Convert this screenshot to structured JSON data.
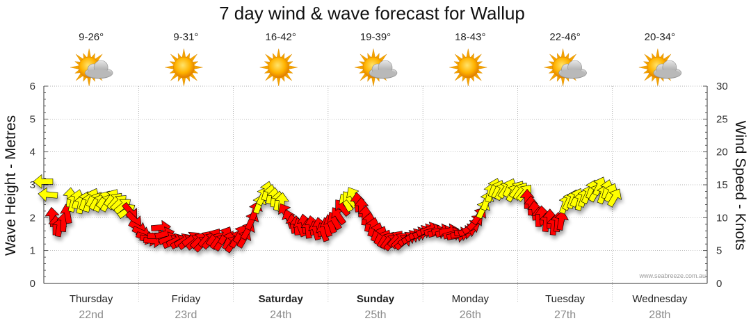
{
  "chart_data": {
    "type": "scatter",
    "title": "7 day wind & wave forecast for Wallup",
    "ylabel_left": "Wave Height - Metres",
    "ylabel_right": "Wind Speed - Knots",
    "ylim_left": [
      0,
      6
    ],
    "ylim_right": [
      0,
      30
    ],
    "yticks_left": [
      "0",
      "1",
      "2",
      "3",
      "4",
      "5",
      "6"
    ],
    "yticks_right": [
      "0",
      "5",
      "10",
      "15",
      "20",
      "25",
      "30"
    ],
    "credit": "www.seabreeze.com.au",
    "days": [
      {
        "name": "Thursday",
        "date": "22nd",
        "temp": "9-26°",
        "weather": "partly-cloudy-icon",
        "weekend": false
      },
      {
        "name": "Friday",
        "date": "23rd",
        "temp": "9-31°",
        "weather": "sunny-icon",
        "weekend": false
      },
      {
        "name": "Saturday",
        "date": "24th",
        "temp": "16-42°",
        "weather": "sunny-icon",
        "weekend": true
      },
      {
        "name": "Sunday",
        "date": "25th",
        "temp": "19-39°",
        "weather": "partly-cloudy-icon",
        "weekend": true
      },
      {
        "name": "Monday",
        "date": "26th",
        "temp": "18-43°",
        "weather": "sunny-icon",
        "weekend": false
      },
      {
        "name": "Tuesday",
        "date": "27th",
        "temp": "22-46°",
        "weather": "partly-cloudy-icon",
        "weekend": false
      },
      {
        "name": "Wednesday",
        "date": "28th",
        "temp": "20-34°",
        "weather": "partly-cloudy-icon",
        "weekend": false
      }
    ],
    "colors": {
      "strong": "#ff0000",
      "light": "#ffff00",
      "outline": "#000000",
      "grid": "#999999"
    },
    "series": [
      {
        "name": "Wind direction & speed (arrows)",
        "values": [
          [
            0.0,
            3.1,
            90,
            "y"
          ],
          [
            0.1,
            2.7,
            95,
            "y"
          ],
          [
            0.18,
            2.0,
            175,
            "r"
          ],
          [
            0.25,
            1.75,
            180,
            "r"
          ],
          [
            0.33,
            1.7,
            190,
            "r"
          ],
          [
            0.42,
            1.85,
            185,
            "r"
          ],
          [
            0.5,
            2.1,
            170,
            "r"
          ],
          [
            0.55,
            2.6,
            185,
            "y"
          ],
          [
            0.62,
            2.45,
            195,
            "y"
          ],
          [
            0.7,
            2.55,
            195,
            "y"
          ],
          [
            0.78,
            2.4,
            190,
            "y"
          ],
          [
            0.86,
            2.5,
            200,
            "y"
          ],
          [
            0.94,
            2.45,
            195,
            "y"
          ],
          [
            1.02,
            2.6,
            205,
            "y"
          ],
          [
            1.1,
            2.5,
            210,
            "y"
          ],
          [
            1.18,
            2.45,
            205,
            "y"
          ],
          [
            1.26,
            2.55,
            215,
            "y"
          ],
          [
            1.34,
            2.45,
            210,
            "y"
          ],
          [
            1.42,
            2.6,
            215,
            "y"
          ],
          [
            1.5,
            2.5,
            220,
            "y"
          ],
          [
            1.58,
            2.45,
            225,
            "y"
          ],
          [
            1.66,
            2.35,
            230,
            "y"
          ],
          [
            1.74,
            2.2,
            235,
            "y"
          ],
          [
            1.82,
            2.2,
            320,
            "r"
          ],
          [
            1.9,
            1.95,
            315,
            "r"
          ],
          [
            1.98,
            1.7,
            300,
            "r"
          ],
          [
            2.06,
            1.55,
            295,
            "r"
          ],
          [
            2.14,
            1.4,
            290,
            "r"
          ],
          [
            2.22,
            1.35,
            280,
            "r"
          ],
          [
            2.3,
            1.3,
            275,
            "r"
          ],
          [
            2.38,
            1.45,
            270,
            "r"
          ],
          [
            2.46,
            1.7,
            265,
            "r"
          ],
          [
            2.54,
            1.5,
            255,
            "r"
          ],
          [
            2.62,
            1.35,
            250,
            "r"
          ],
          [
            2.7,
            1.25,
            245,
            "r"
          ],
          [
            2.78,
            1.3,
            245,
            "r"
          ],
          [
            2.86,
            1.25,
            240,
            "r"
          ],
          [
            2.94,
            1.3,
            240,
            "r"
          ],
          [
            3.02,
            1.25,
            235,
            "r"
          ],
          [
            3.1,
            1.35,
            235,
            "r"
          ],
          [
            3.18,
            1.25,
            230,
            "r"
          ],
          [
            3.26,
            1.3,
            225,
            "r"
          ],
          [
            3.34,
            1.2,
            225,
            "r"
          ],
          [
            3.42,
            1.35,
            220,
            "r"
          ],
          [
            3.5,
            1.3,
            220,
            "r"
          ],
          [
            3.58,
            1.4,
            215,
            "r"
          ],
          [
            3.66,
            1.3,
            215,
            "r"
          ],
          [
            3.74,
            1.25,
            215,
            "r"
          ],
          [
            3.82,
            1.45,
            210,
            "r"
          ],
          [
            3.9,
            1.3,
            205,
            "r"
          ],
          [
            3.98,
            1.2,
            215,
            "r"
          ],
          [
            4.06,
            1.35,
            210,
            "r"
          ],
          [
            4.14,
            1.5,
            210,
            "r"
          ],
          [
            4.22,
            1.35,
            210,
            "r"
          ],
          [
            4.3,
            1.6,
            210,
            "r"
          ],
          [
            4.38,
            1.9,
            205,
            "r"
          ],
          [
            4.46,
            2.2,
            200,
            "r"
          ],
          [
            4.54,
            2.4,
            200,
            "y"
          ],
          [
            4.62,
            2.65,
            205,
            "y"
          ],
          [
            4.7,
            2.8,
            195,
            "y"
          ],
          [
            4.78,
            2.7,
            190,
            "y"
          ],
          [
            4.86,
            2.6,
            185,
            "y"
          ],
          [
            4.94,
            2.5,
            190,
            "y"
          ],
          [
            5.02,
            2.45,
            185,
            "y"
          ],
          [
            5.1,
            2.15,
            150,
            "r"
          ],
          [
            5.18,
            1.95,
            160,
            "r"
          ],
          [
            5.26,
            1.8,
            170,
            "r"
          ],
          [
            5.34,
            1.75,
            175,
            "r"
          ],
          [
            5.42,
            1.7,
            160,
            "r"
          ],
          [
            5.5,
            1.8,
            170,
            "r"
          ],
          [
            5.58,
            1.65,
            175,
            "r"
          ],
          [
            5.66,
            1.75,
            170,
            "r"
          ],
          [
            5.74,
            1.6,
            165,
            "r"
          ],
          [
            5.82,
            1.7,
            170,
            "r"
          ],
          [
            5.9,
            1.55,
            160,
            "r"
          ],
          [
            5.98,
            1.7,
            165,
            "r"
          ],
          [
            6.06,
            1.8,
            160,
            "r"
          ],
          [
            6.14,
            1.9,
            150,
            "r"
          ],
          [
            6.22,
            2.05,
            145,
            "r"
          ],
          [
            6.3,
            2.3,
            140,
            "r"
          ],
          [
            6.38,
            2.45,
            150,
            "y"
          ],
          [
            6.46,
            2.55,
            140,
            "y"
          ],
          [
            6.54,
            2.65,
            150,
            "y"
          ],
          [
            6.62,
            2.45,
            175,
            "r"
          ],
          [
            6.7,
            2.3,
            180,
            "r"
          ],
          [
            6.78,
            2.05,
            185,
            "r"
          ],
          [
            6.86,
            1.85,
            190,
            "r"
          ],
          [
            6.94,
            1.7,
            195,
            "r"
          ],
          [
            7.02,
            1.55,
            200,
            "r"
          ],
          [
            7.1,
            1.45,
            205,
            "r"
          ],
          [
            7.18,
            1.35,
            210,
            "r"
          ],
          [
            7.26,
            1.3,
            215,
            "r"
          ],
          [
            7.34,
            1.25,
            220,
            "r"
          ],
          [
            7.42,
            1.35,
            220,
            "r"
          ],
          [
            7.5,
            1.3,
            225,
            "r"
          ],
          [
            7.58,
            1.25,
            230,
            "r"
          ],
          [
            7.66,
            1.35,
            235,
            "r"
          ],
          [
            7.74,
            1.4,
            240,
            "r"
          ],
          [
            7.82,
            1.45,
            245,
            "r"
          ],
          [
            7.9,
            1.5,
            250,
            "r"
          ],
          [
            7.98,
            1.55,
            245,
            "r"
          ],
          [
            8.06,
            1.6,
            250,
            "r"
          ],
          [
            8.14,
            1.65,
            250,
            "r"
          ],
          [
            8.22,
            1.6,
            255,
            "r"
          ],
          [
            8.3,
            1.55,
            255,
            "r"
          ],
          [
            8.38,
            1.6,
            260,
            "r"
          ],
          [
            8.46,
            1.55,
            255,
            "r"
          ],
          [
            8.54,
            1.6,
            260,
            "r"
          ],
          [
            8.62,
            1.5,
            255,
            "r"
          ],
          [
            8.7,
            1.45,
            260,
            "r"
          ],
          [
            8.78,
            1.5,
            260,
            "r"
          ],
          [
            8.86,
            1.55,
            265,
            "r"
          ],
          [
            8.94,
            1.6,
            250,
            "r"
          ],
          [
            9.02,
            1.7,
            240,
            "r"
          ],
          [
            9.1,
            1.85,
            225,
            "r"
          ],
          [
            9.18,
            2.05,
            215,
            "r"
          ],
          [
            9.26,
            2.25,
            205,
            "y"
          ],
          [
            9.34,
            2.5,
            200,
            "y"
          ],
          [
            9.42,
            2.75,
            195,
            "y"
          ],
          [
            9.5,
            2.9,
            200,
            "y"
          ],
          [
            9.58,
            2.85,
            205,
            "y"
          ],
          [
            9.66,
            2.8,
            210,
            "y"
          ],
          [
            9.74,
            2.85,
            215,
            "y"
          ],
          [
            9.82,
            2.9,
            205,
            "y"
          ],
          [
            9.9,
            2.75,
            210,
            "y"
          ],
          [
            9.98,
            2.85,
            215,
            "y"
          ],
          [
            10.06,
            2.8,
            215,
            "y"
          ],
          [
            10.14,
            2.75,
            220,
            "y"
          ],
          [
            10.2,
            2.55,
            180,
            "r"
          ],
          [
            10.28,
            2.35,
            180,
            "r"
          ],
          [
            10.36,
            2.2,
            175,
            "r"
          ],
          [
            10.44,
            2.0,
            180,
            "r"
          ],
          [
            10.52,
            2.05,
            175,
            "r"
          ],
          [
            10.6,
            1.85,
            185,
            "r"
          ],
          [
            10.68,
            1.95,
            180,
            "r"
          ],
          [
            10.76,
            1.75,
            185,
            "r"
          ],
          [
            10.84,
            1.85,
            185,
            "r"
          ],
          [
            10.92,
            1.9,
            190,
            "r"
          ],
          [
            11.0,
            2.4,
            200,
            "y"
          ],
          [
            11.08,
            2.5,
            205,
            "y"
          ],
          [
            11.16,
            2.55,
            200,
            "y"
          ],
          [
            11.24,
            2.6,
            205,
            "y"
          ],
          [
            11.32,
            2.5,
            195,
            "y"
          ],
          [
            11.4,
            2.6,
            200,
            "y"
          ],
          [
            11.48,
            2.7,
            205,
            "y"
          ],
          [
            11.56,
            2.85,
            200,
            "y"
          ],
          [
            11.64,
            2.75,
            210,
            "y"
          ],
          [
            11.72,
            2.95,
            205,
            "y"
          ],
          [
            11.8,
            2.7,
            200,
            "y"
          ],
          [
            11.88,
            2.85,
            195,
            "y"
          ],
          [
            11.96,
            2.75,
            205,
            "y"
          ],
          [
            12.04,
            2.6,
            210,
            "y"
          ]
        ]
      }
    ]
  }
}
